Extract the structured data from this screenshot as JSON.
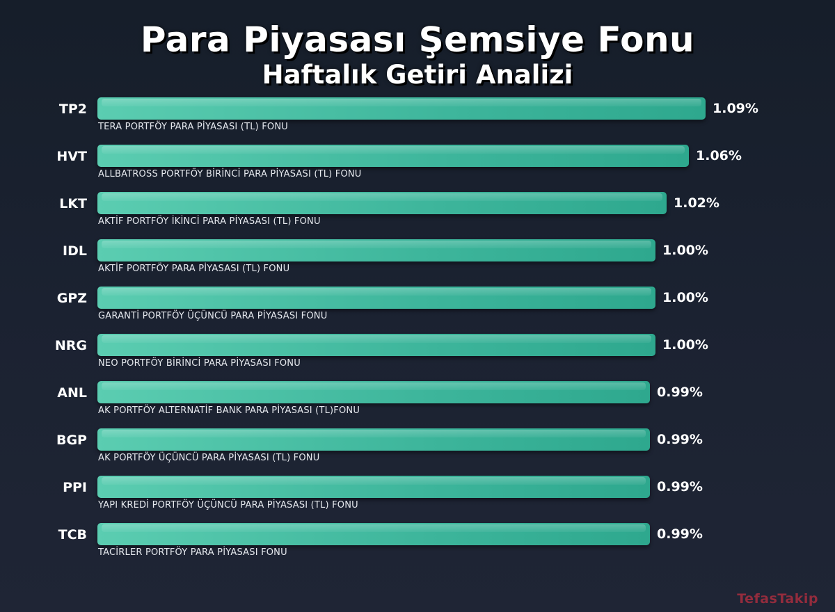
{
  "chart_data": {
    "type": "bar",
    "orientation": "horizontal",
    "title": "Para Piyasası Şemsiye Fonu",
    "subtitle": "Haftalık Getiri Analizi",
    "unit": "%",
    "xlim": [
      0,
      1.09
    ],
    "categories": [
      "TP2",
      "HVT",
      "LKT",
      "IDL",
      "GPZ",
      "NRG",
      "ANL",
      "BGP",
      "PPI",
      "TCB"
    ],
    "fund_names": [
      "TERA PORTFÖY PARA PİYASASI (TL) FONU",
      "ALLBATROSS PORTFÖY BİRİNCİ PARA PİYASASI (TL) FONU",
      "AKTİF PORTFÖY İKİNCİ PARA PİYASASI (TL) FONU",
      "AKTİF PORTFÖY PARA PİYASASI (TL) FONU",
      "GARANTİ PORTFÖY ÜÇÜNCÜ PARA PİYASASI FONU",
      "NEO PORTFÖY BİRİNCİ PARA PİYASASI FONU",
      "AK PORTFÖY ALTERNATİF BANK PARA PİYASASI (TL)FONU",
      "AK PORTFÖY ÜÇÜNCÜ PARA PİYASASI (TL) FONU",
      "YAPI KREDİ PORTFÖY ÜÇÜNCÜ PARA PİYASASI (TL) FONU",
      "TACİRLER PORTFÖY PARA PİYASASI FONU"
    ],
    "values": [
      1.09,
      1.06,
      1.02,
      1.0,
      1.0,
      1.0,
      0.99,
      0.99,
      0.99,
      0.99
    ],
    "value_labels": [
      "1.09%",
      "1.06%",
      "1.02%",
      "1.00%",
      "1.00%",
      "1.00%",
      "0.99%",
      "0.99%",
      "0.99%",
      "0.99%"
    ],
    "colors": {
      "bar": "#3db59b",
      "background": "#1b2231",
      "text": "#ffffff"
    }
  },
  "watermark": "TefasTakip"
}
